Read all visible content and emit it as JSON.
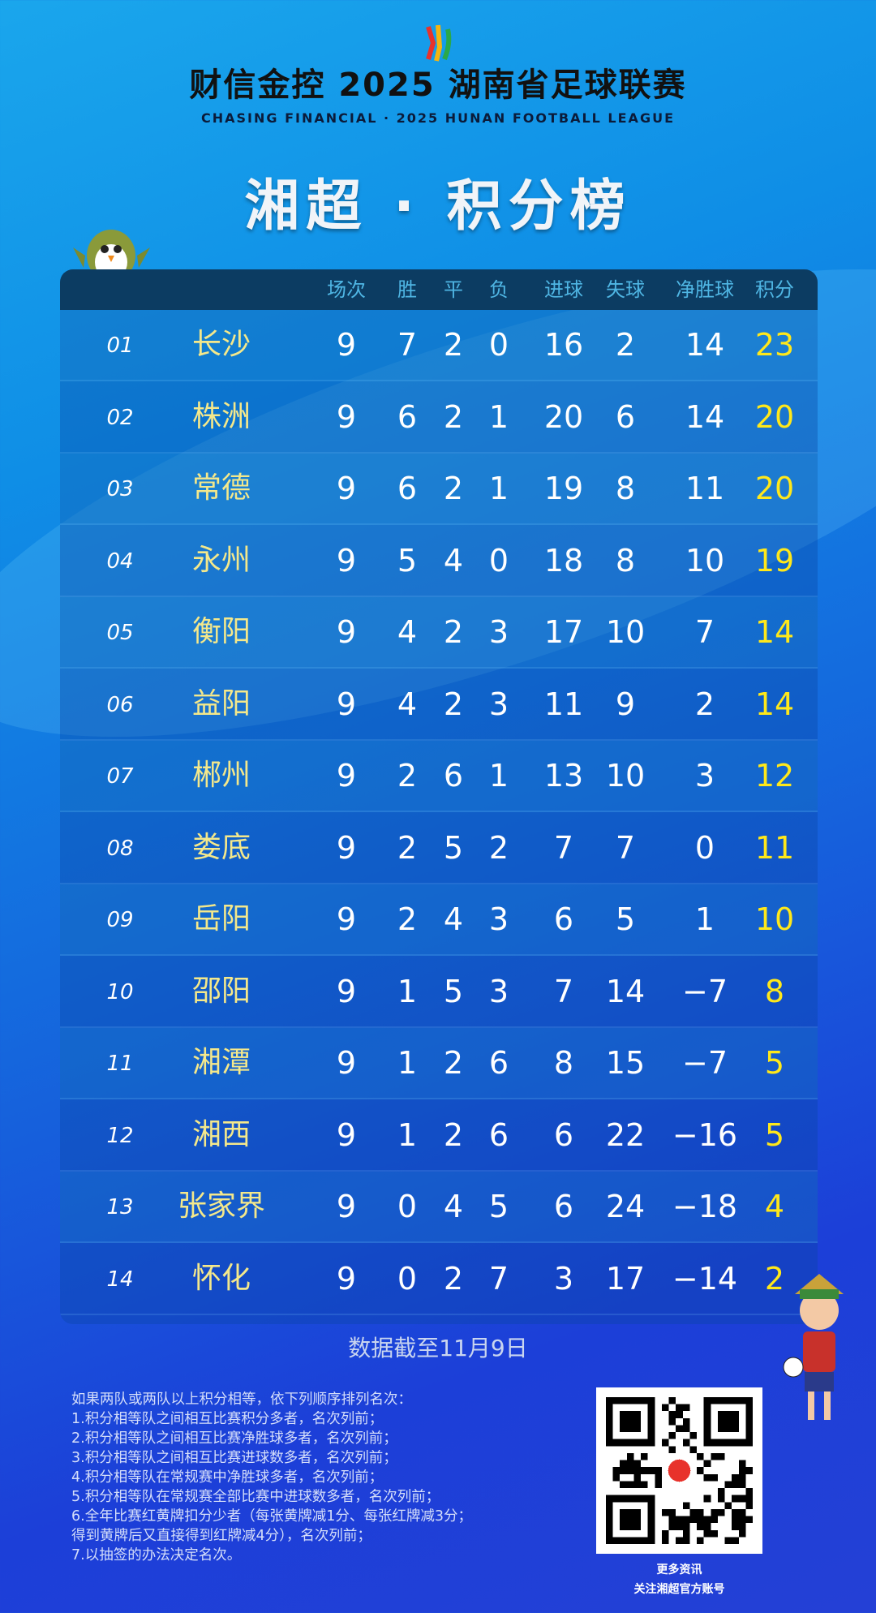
{
  "header": {
    "sponsor": "财信金控 2025 湖南省足球联赛",
    "sponsor_en": "CHASING FINANCIAL  ·  2025 HUNAN FOOTBALL LEAGUE",
    "title": "湘超 · 积分榜"
  },
  "table": {
    "columns": [
      "场次",
      "胜",
      "平",
      "负",
      "进球",
      "失球",
      "净胜球",
      "积分"
    ],
    "rows": [
      [
        "01",
        "长沙",
        "9",
        "7",
        "2",
        "0",
        "16",
        "2",
        "14",
        "23"
      ],
      [
        "02",
        "株洲",
        "9",
        "6",
        "2",
        "1",
        "20",
        "6",
        "14",
        "20"
      ],
      [
        "03",
        "常德",
        "9",
        "6",
        "2",
        "1",
        "19",
        "8",
        "11",
        "20"
      ],
      [
        "04",
        "永州",
        "9",
        "5",
        "4",
        "0",
        "18",
        "8",
        "10",
        "19"
      ],
      [
        "05",
        "衡阳",
        "9",
        "4",
        "2",
        "3",
        "17",
        "10",
        "7",
        "14"
      ],
      [
        "06",
        "益阳",
        "9",
        "4",
        "2",
        "3",
        "11",
        "9",
        "2",
        "14"
      ],
      [
        "07",
        "郴州",
        "9",
        "2",
        "6",
        "1",
        "13",
        "10",
        "3",
        "12"
      ],
      [
        "08",
        "娄底",
        "9",
        "2",
        "5",
        "2",
        "7",
        "7",
        "0",
        "11"
      ],
      [
        "09",
        "岳阳",
        "9",
        "2",
        "4",
        "3",
        "6",
        "5",
        "1",
        "10"
      ],
      [
        "10",
        "邵阳",
        "9",
        "1",
        "5",
        "3",
        "7",
        "14",
        "−7",
        "8"
      ],
      [
        "11",
        "湘潭",
        "9",
        "1",
        "2",
        "6",
        "8",
        "15",
        "−7",
        "5"
      ],
      [
        "12",
        "湘西",
        "9",
        "1",
        "2",
        "6",
        "6",
        "22",
        "−16",
        "5"
      ],
      [
        "13",
        "张家界",
        "9",
        "0",
        "4",
        "5",
        "6",
        "24",
        "−18",
        "4"
      ],
      [
        "14",
        "怀化",
        "9",
        "0",
        "2",
        "7",
        "3",
        "17",
        "−14",
        "2"
      ]
    ]
  },
  "footer": {
    "date": "数据截至11月9日",
    "rules": [
      "如果两队或两队以上积分相等，依下列顺序排列名次：",
      "1.积分相等队之间相互比赛积分多者，名次列前；",
      "2.积分相等队之间相互比赛净胜球多者，名次列前；",
      "3.积分相等队之间相互比赛进球数多者，名次列前；",
      "4.积分相等队在常规赛中净胜球多者，名次列前；",
      "5.积分相等队在常规赛全部比赛中进球数多者，名次列前；",
      "6.全年比赛红黄牌扣分少者（每张黄牌减1分、每张红牌减3分；",
      "得到黄牌后又直接得到红牌减4分），名次列前；",
      "7.以抽签的办法决定名次。"
    ],
    "qr_caption1": "更多资讯",
    "qr_caption2": "关注湘超官方账号"
  },
  "colors": {
    "points": "#ffe81a",
    "team": "#f4e88b",
    "header_text": "#4fb6e4",
    "header_bg": "#0c3c62"
  }
}
